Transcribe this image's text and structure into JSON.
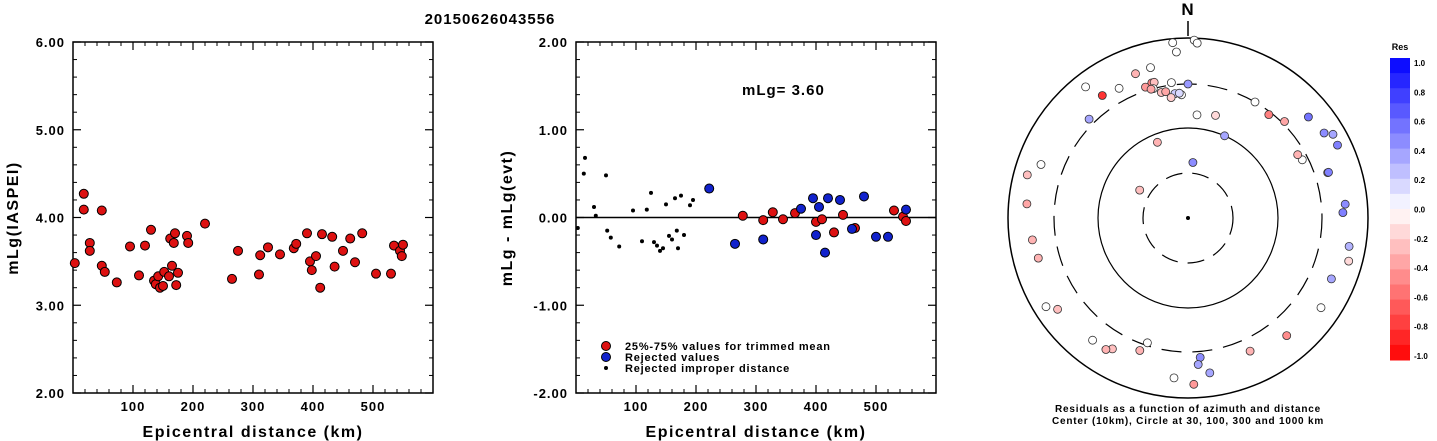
{
  "title": "20150626043556",
  "chart_data": [
    {
      "type": "scatter",
      "ylabel": "mLg(IASPEI)",
      "xlabel": "Epicentral distance (km)",
      "xlim": [
        0,
        600
      ],
      "ylim": [
        2,
        6
      ],
      "xticks": [
        100,
        200,
        300,
        400,
        500
      ],
      "yticks": [
        "2.00",
        "3.00",
        "4.00",
        "5.00",
        "6.00"
      ],
      "points": [
        [
          3,
          3.48
        ],
        [
          18,
          4.27
        ],
        [
          18,
          4.09
        ],
        [
          28,
          3.71
        ],
        [
          28,
          3.62
        ],
        [
          48,
          4.08
        ],
        [
          48,
          3.45
        ],
        [
          53,
          3.38
        ],
        [
          73,
          3.26
        ],
        [
          95,
          3.67
        ],
        [
          110,
          3.34
        ],
        [
          120,
          3.68
        ],
        [
          130,
          3.86
        ],
        [
          135,
          3.28
        ],
        [
          138,
          3.24
        ],
        [
          142,
          3.33
        ],
        [
          145,
          3.2
        ],
        [
          150,
          3.22
        ],
        [
          152,
          3.38
        ],
        [
          160,
          3.33
        ],
        [
          162,
          3.76
        ],
        [
          165,
          3.45
        ],
        [
          168,
          3.71
        ],
        [
          170,
          3.82
        ],
        [
          172,
          3.23
        ],
        [
          175,
          3.37
        ],
        [
          190,
          3.79
        ],
        [
          192,
          3.71
        ],
        [
          220,
          3.93
        ],
        [
          265,
          3.3
        ],
        [
          275,
          3.62
        ],
        [
          310,
          3.35
        ],
        [
          312,
          3.57
        ],
        [
          325,
          3.66
        ],
        [
          345,
          3.58
        ],
        [
          368,
          3.65
        ],
        [
          372,
          3.7
        ],
        [
          390,
          3.82
        ],
        [
          395,
          3.5
        ],
        [
          398,
          3.4
        ],
        [
          405,
          3.56
        ],
        [
          412,
          3.2
        ],
        [
          415,
          3.81
        ],
        [
          432,
          3.78
        ],
        [
          436,
          3.44
        ],
        [
          450,
          3.62
        ],
        [
          462,
          3.76
        ],
        [
          470,
          3.49
        ],
        [
          482,
          3.82
        ],
        [
          505,
          3.36
        ],
        [
          530,
          3.36
        ],
        [
          535,
          3.68
        ],
        [
          545,
          3.62
        ],
        [
          548,
          3.56
        ],
        [
          550,
          3.69
        ]
      ]
    },
    {
      "type": "scatter",
      "ylabel": "mLg - mLg(evt)",
      "xlabel": "Epicentral distance (km)",
      "annotation": "mLg= 3.60",
      "xlim": [
        0,
        600
      ],
      "ylim": [
        -2,
        2
      ],
      "xticks": [
        100,
        200,
        300,
        400,
        500
      ],
      "yticks": [
        "-2.00",
        "-1.00",
        "0.00",
        "1.00",
        "2.00"
      ],
      "legend": [
        {
          "label": "25%-75% values for trimmed mean",
          "color": "#dd1111",
          "kind": "circle"
        },
        {
          "label": "Rejected values",
          "color": "#1122cc",
          "kind": "circle"
        },
        {
          "label": "Rejected improper distance",
          "color": "#000000",
          "kind": "dot"
        }
      ],
      "series": [
        {
          "name": "25%-75% values for trimmed mean",
          "color": "#dd1111",
          "points": [
            [
              278,
              0.02
            ],
            [
              312,
              -0.03
            ],
            [
              328,
              0.06
            ],
            [
              345,
              -0.02
            ],
            [
              365,
              0.05
            ],
            [
              400,
              -0.05
            ],
            [
              410,
              -0.02
            ],
            [
              430,
              -0.17
            ],
            [
              445,
              0.03
            ],
            [
              465,
              -0.12
            ],
            [
              530,
              0.08
            ],
            [
              545,
              0.01
            ],
            [
              550,
              -0.04
            ]
          ]
        },
        {
          "name": "Rejected values",
          "color": "#1122cc",
          "points": [
            [
              222,
              0.33
            ],
            [
              265,
              -0.3
            ],
            [
              312,
              -0.25
            ],
            [
              375,
              0.1
            ],
            [
              395,
              0.22
            ],
            [
              400,
              -0.2
            ],
            [
              405,
              0.12
            ],
            [
              415,
              -0.4
            ],
            [
              420,
              0.22
            ],
            [
              440,
              0.2
            ],
            [
              460,
              -0.13
            ],
            [
              480,
              0.24
            ],
            [
              500,
              -0.22
            ],
            [
              520,
              -0.22
            ],
            [
              550,
              0.09
            ]
          ]
        },
        {
          "name": "Rejected improper distance",
          "color": "#000000",
          "points": [
            [
              3,
              -0.12
            ],
            [
              13,
              0.5
            ],
            [
              15,
              0.68
            ],
            [
              30,
              0.12
            ],
            [
              33,
              0.02
            ],
            [
              50,
              0.48
            ],
            [
              52,
              -0.15
            ],
            [
              58,
              -0.23
            ],
            [
              72,
              -0.33
            ],
            [
              95,
              0.08
            ],
            [
              110,
              -0.27
            ],
            [
              118,
              0.09
            ],
            [
              125,
              0.28
            ],
            [
              130,
              -0.28
            ],
            [
              135,
              -0.32
            ],
            [
              140,
              -0.38
            ],
            [
              145,
              -0.35
            ],
            [
              150,
              0.15
            ],
            [
              155,
              -0.21
            ],
            [
              160,
              -0.25
            ],
            [
              165,
              0.22
            ],
            [
              168,
              -0.15
            ],
            [
              170,
              -0.35
            ],
            [
              175,
              0.25
            ],
            [
              180,
              -0.2
            ],
            [
              190,
              0.14
            ],
            [
              195,
              0.2
            ]
          ]
        }
      ]
    },
    {
      "type": "polar-scatter",
      "north_label": "N",
      "caption": [
        "Residuals as a function of azimuth and distance",
        "Center (10km), Circle at 30, 100, 300 and 1000 km"
      ],
      "colorbar": {
        "title": "Res",
        "ticks": [
          "1.0",
          "0.8",
          "0.6",
          "0.4",
          "0.2",
          "0.0",
          "-0.2",
          "-0.4",
          "-0.6",
          "-0.8",
          "-1.0"
        ]
      },
      "points": [
        [
          -15,
          -0.5
        ],
        [
          -35,
          -0.8
        ],
        [
          -22,
          -0.3
        ],
        [
          -60,
          -0.25
        ],
        [
          30,
          0.0
        ],
        [
          50,
          0.55
        ],
        [
          -5,
          0.0
        ],
        [
          -45,
          0.35
        ],
        [
          -14,
          -0.25
        ],
        [
          -3,
          -0.0
        ],
        [
          5,
          0.45
        ],
        [
          -12,
          -0.25
        ],
        [
          -15,
          0.0
        ],
        [
          -6,
          0.2
        ],
        [
          -4,
          0.15
        ],
        [
          -10,
          -0.35
        ],
        [
          -18,
          -0.4
        ],
        [
          -8,
          -0.2
        ],
        [
          -16,
          -0.35
        ],
        [
          0,
          0.4
        ],
        [
          15,
          -0.15
        ],
        [
          38,
          -0.5
        ],
        [
          45,
          -0.35
        ],
        [
          24,
          0.35
        ],
        [
          5,
          0.0
        ],
        [
          2,
          0.0
        ],
        [
          60,
          0.35
        ],
        [
          58,
          0.45
        ],
        [
          64,
          0.5
        ],
        [
          63,
          0.0
        ],
        [
          60,
          -0.3
        ],
        [
          72,
          -0.35
        ],
        [
          72,
          0.5
        ],
        [
          85,
          0.45
        ],
        [
          100,
          0.3
        ],
        [
          88,
          0.5
        ],
        [
          113,
          0.35
        ],
        [
          105,
          -0.15
        ],
        [
          124,
          0.0
        ],
        [
          155,
          -0.3
        ],
        [
          140,
          -0.45
        ],
        [
          175,
          0.45
        ],
        [
          176,
          0.35
        ],
        [
          178,
          -0.4
        ],
        [
          172,
          0.35
        ],
        [
          185,
          0.0
        ],
        [
          198,
          0.0
        ],
        [
          200,
          -0.3
        ],
        [
          210,
          -0.25
        ],
        [
          238,
          0.0
        ],
        [
          235,
          -0.25
        ],
        [
          218,
          0.0
        ],
        [
          212,
          -0.3
        ],
        [
          255,
          -0.3
        ],
        [
          262,
          -0.3
        ],
        [
          275,
          -0.35
        ],
        [
          285,
          -0.25
        ],
        [
          290,
          0.0
        ],
        [
          322,
          0.0
        ],
        [
          332,
          0.0
        ],
        [
          340,
          -0.3
        ],
        [
          353,
          0.0
        ],
        [
          346,
          0.0
        ],
        [
          356,
          0.0
        ],
        [
          3,
          0.0
        ]
      ]
    }
  ]
}
